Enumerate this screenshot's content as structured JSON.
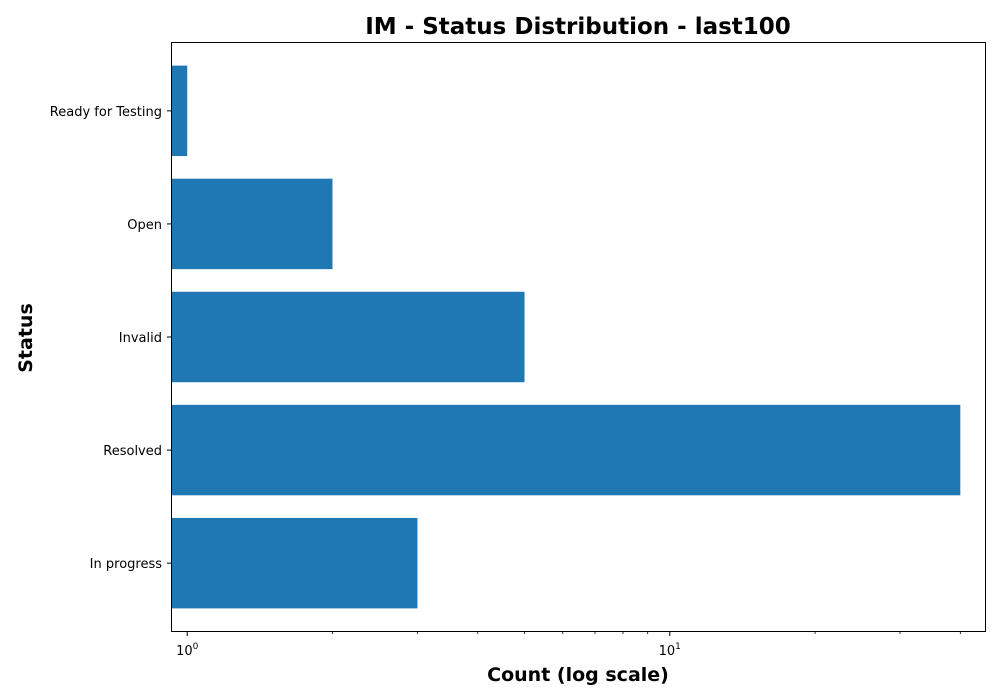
{
  "chart_data": {
    "type": "bar",
    "orientation": "horizontal",
    "title": "IM - Status Distribution - last100",
    "xlabel": "Count (log scale)",
    "ylabel": "Status",
    "x_scale": "log",
    "xlim": [
      0.93,
      45
    ],
    "x_ticks": [
      {
        "value": 1,
        "base": "10",
        "exp": "0"
      },
      {
        "value": 10,
        "base": "10",
        "exp": "1"
      }
    ],
    "categories": [
      "In progress",
      "Resolved",
      "Invalid",
      "Open",
      "Ready for Testing"
    ],
    "values": [
      3,
      40,
      5,
      2,
      1
    ],
    "bar_color": "#1f77b4",
    "grid": false,
    "legend": "none"
  }
}
